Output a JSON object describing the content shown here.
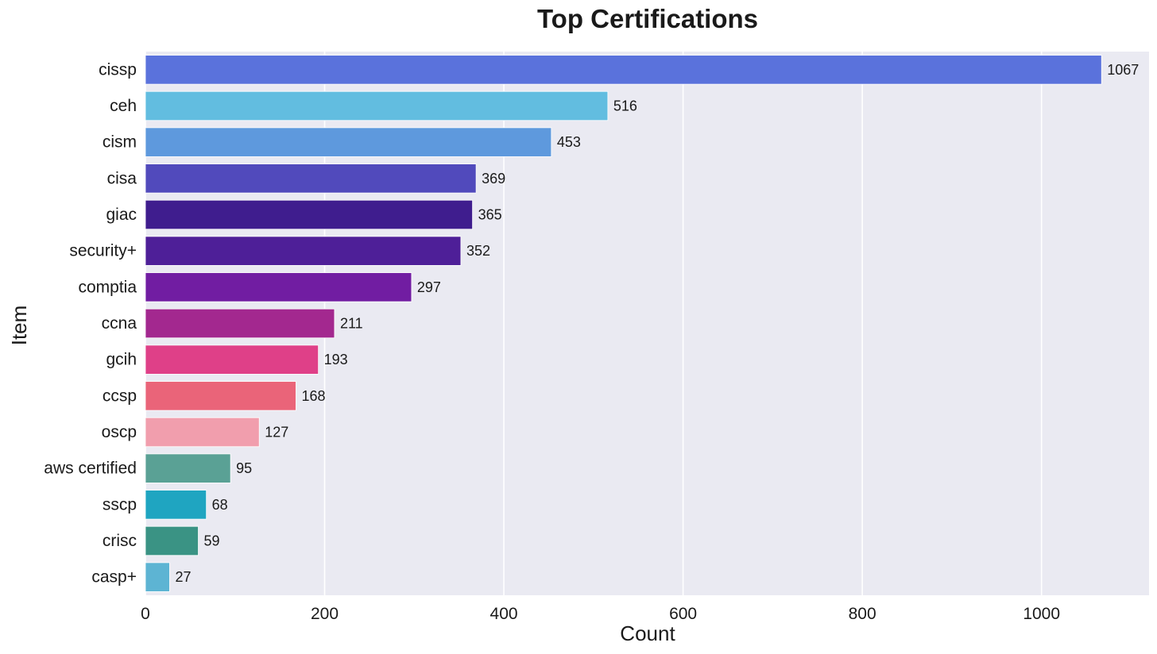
{
  "chart_data": {
    "type": "bar",
    "orientation": "horizontal",
    "title": "Top Certifications",
    "xlabel": "Count",
    "ylabel": "Item",
    "xlim": [
      0,
      1120
    ],
    "xticks": [
      0,
      200,
      400,
      600,
      800,
      1000
    ],
    "grid": true,
    "background": "#eaeaf2",
    "categories": [
      "cissp",
      "ceh",
      "cism",
      "cisa",
      "giac",
      "security+",
      "comptia",
      "ccna",
      "gcih",
      "ccsp",
      "oscp",
      "aws certified",
      "sscp",
      "crisc",
      "casp+"
    ],
    "values": [
      1067,
      516,
      453,
      369,
      365,
      352,
      297,
      211,
      193,
      168,
      127,
      95,
      68,
      59,
      27
    ],
    "colors": [
      "#5a72dc",
      "#62bde0",
      "#5e99dd",
      "#514abc",
      "#3f1d8e",
      "#4e1f98",
      "#711da2",
      "#a3288f",
      "#df4088",
      "#ea6479",
      "#f19ead",
      "#5aa195",
      "#1fa5c1",
      "#3a9384",
      "#5db4d3"
    ]
  }
}
